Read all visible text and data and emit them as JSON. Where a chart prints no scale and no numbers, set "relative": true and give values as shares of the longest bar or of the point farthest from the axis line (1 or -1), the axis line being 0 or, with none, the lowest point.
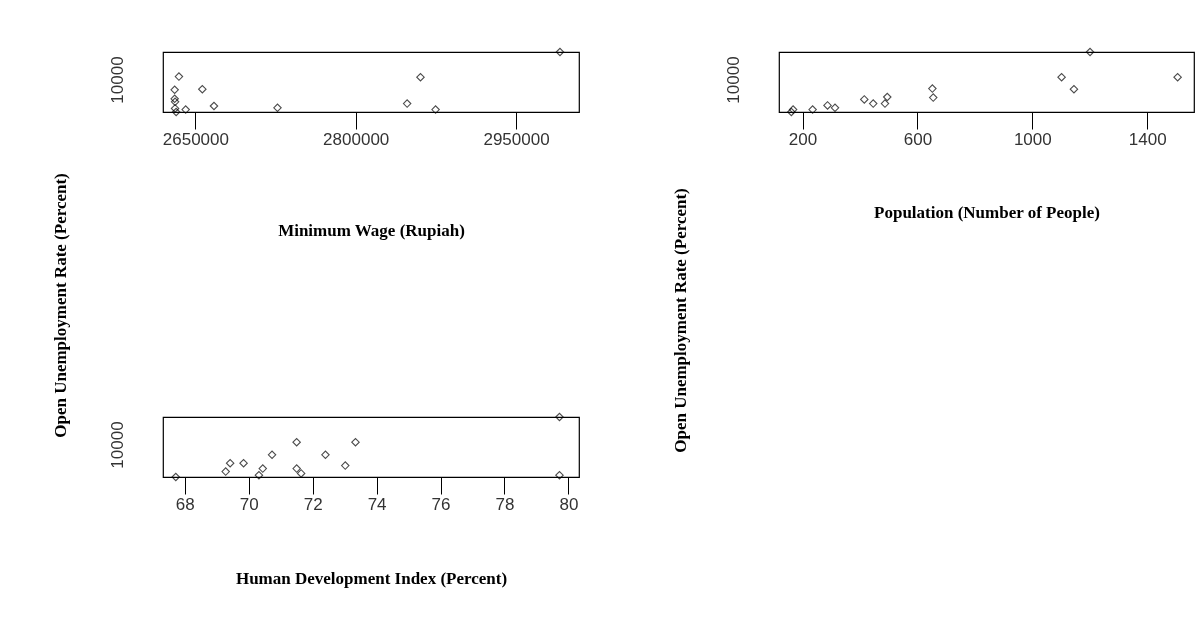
{
  "chart_data": [
    {
      "type": "scatter",
      "xlabel": "Minimum Wage (Rupiah)",
      "ylabel": "Open Unemployment Rate (Percent)",
      "relative": true,
      "marker": "diamond",
      "annotations": [
        "10000"
      ],
      "xlim": [
        2619700,
        3008900
      ],
      "xticks": [
        2650000,
        2800000,
        2950000
      ],
      "x": [
        2991100,
        2634600,
        2630600,
        2630600,
        2631000,
        2631000,
        2640900,
        2656500,
        2667400,
        2726800,
        2848100,
        2860600,
        2874700,
        2632000
      ],
      "series": [
        {
          "color": "#000000",
          "values": [
            1,
            0.59,
            0.37,
            0.22,
            0.17,
            0.06,
            0.04,
            0.38,
            0.1,
            0.07,
            0.14,
            0.58,
            0.04,
            0
          ]
        }
      ]
    },
    {
      "type": "scatter",
      "xlabel": "Population (Number of People)",
      "ylabel": "Open Unemployment Rate (Percent)",
      "relative": true,
      "marker": "diamond",
      "annotations": [
        "10000"
      ],
      "xlim": [
        118,
        1563
      ],
      "xticks": [
        200,
        600,
        1000,
        1400
      ],
      "x": [
        167,
        161,
        235,
        287,
        313,
        415,
        446,
        487,
        495,
        652,
        655,
        1102,
        1145,
        1201,
        1506
      ],
      "series": [
        {
          "color": "#000000",
          "values": [
            0.04,
            0,
            0.04,
            0.11,
            0.07,
            0.21,
            0.14,
            0.14,
            0.25,
            0.39,
            0.24,
            0.58,
            0.38,
            1,
            0.58
          ]
        }
      ]
    },
    {
      "type": "scatter",
      "xlabel": "Human Development Index (Percent)",
      "relative": true,
      "marker": "diamond",
      "annotations": [
        "10000"
      ],
      "xlim": [
        67.32,
        80.33
      ],
      "xticks": [
        68,
        70,
        72,
        74,
        76,
        78,
        80
      ],
      "x": [
        67.72,
        69.28,
        69.42,
        69.84,
        70.32,
        70.44,
        70.73,
        71.5,
        71.5,
        71.64,
        72.4,
        73.02,
        73.34,
        79.72,
        79.72
      ],
      "series": [
        {
          "color": "#000000",
          "values": [
            0,
            0.09,
            0.23,
            0.23,
            0.03,
            0.14,
            0.37,
            0.58,
            0.14,
            0.06,
            0.37,
            0.19,
            0.58,
            1,
            0.03
          ]
        }
      ]
    }
  ]
}
